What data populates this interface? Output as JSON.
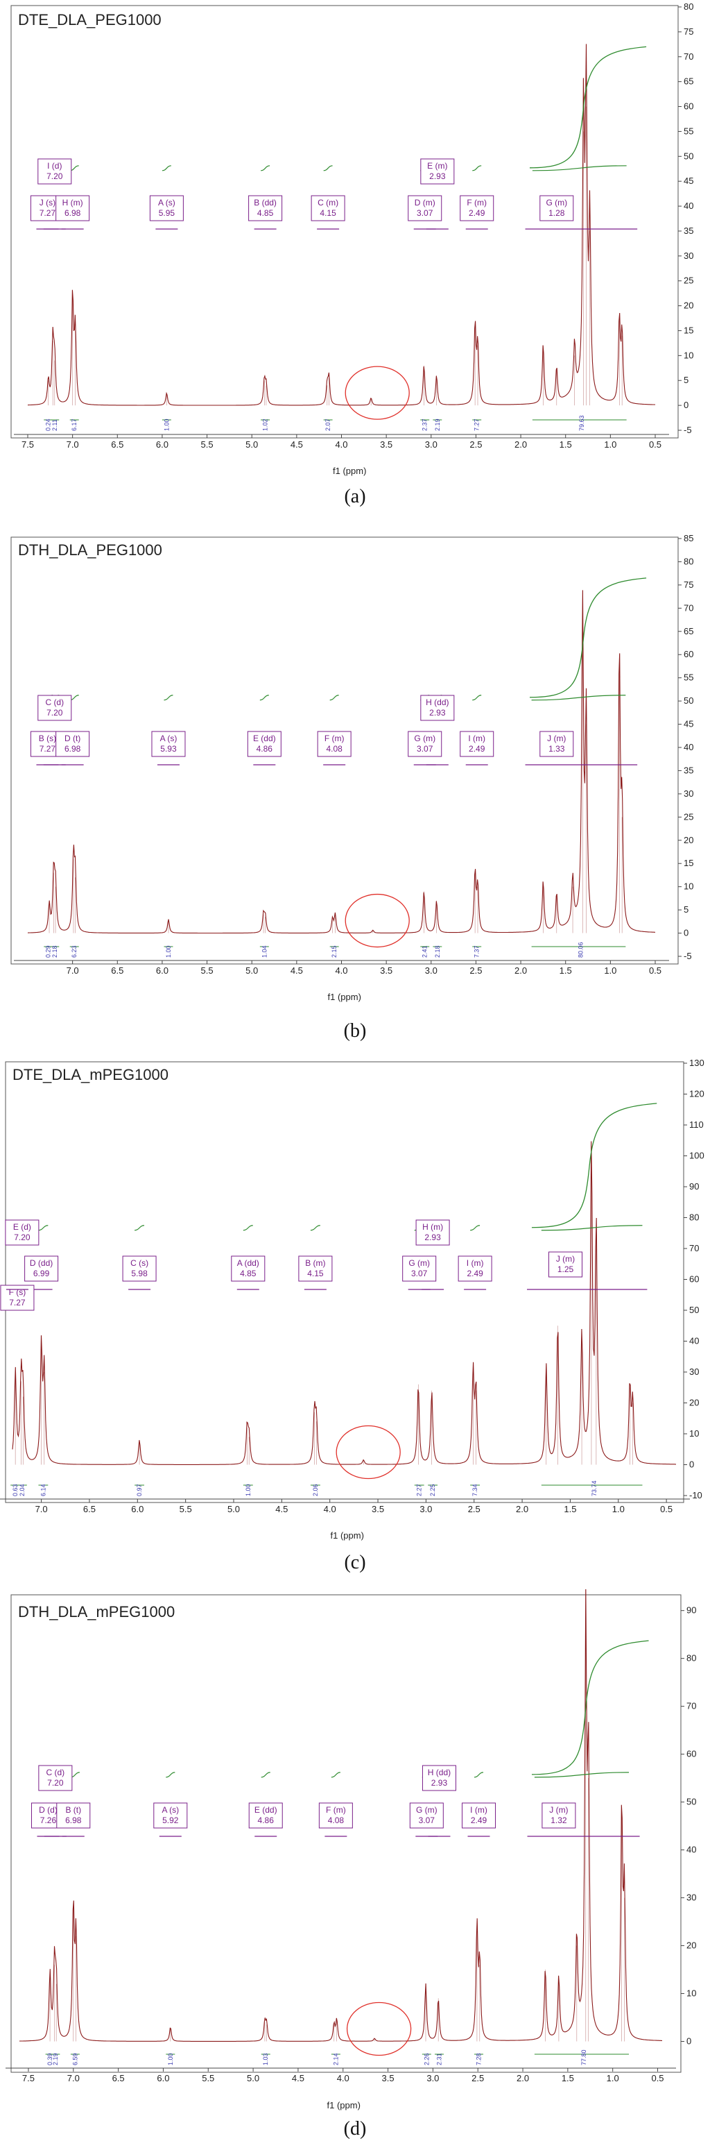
{
  "chart_data": [
    {
      "type": "line",
      "title": "DTE_DLA_PEG1000",
      "caption": "(a)",
      "xlabel": "f1 (ppm)",
      "x_reversed": true,
      "xlim": [
        7.5,
        0.5
      ],
      "ylim": [
        -5,
        80
      ],
      "xticks": [
        "7.5",
        "7.0",
        "6.5",
        "6.0",
        "5.5",
        "5.0",
        "4.5",
        "4.0",
        "3.5",
        "3.0",
        "2.5",
        "2.0",
        "1.5",
        "1.0",
        "0.5"
      ],
      "yticks": [
        "-5",
        "0",
        "5",
        "10",
        "15",
        "20",
        "25",
        "30",
        "35",
        "40",
        "45",
        "50",
        "55",
        "60",
        "65",
        "70",
        "75",
        "80"
      ],
      "peak_labels": [
        {
          "name": "J (s)",
          "shift": "7.27",
          "x": 7.28,
          "row": "low"
        },
        {
          "name": "I (d)",
          "shift": "7.20",
          "x": 7.2,
          "row": "high"
        },
        {
          "name": "H (m)",
          "shift": "6.98",
          "x": 7.0,
          "row": "low"
        },
        {
          "name": "A (s)",
          "shift": "5.95",
          "x": 5.95,
          "row": "low"
        },
        {
          "name": "B (dd)",
          "shift": "4.85",
          "x": 4.85,
          "row": "low"
        },
        {
          "name": "C (m)",
          "shift": "4.15",
          "x": 4.15,
          "row": "low"
        },
        {
          "name": "D (m)",
          "shift": "3.07",
          "x": 3.07,
          "row": "low"
        },
        {
          "name": "E (m)",
          "shift": "2.93",
          "x": 2.93,
          "row": "high"
        },
        {
          "name": "F (m)",
          "shift": "2.49",
          "x": 2.49,
          "row": "low"
        },
        {
          "name": "G (m)",
          "shift": "1.28",
          "x": 1.6,
          "row": "low"
        }
      ],
      "integrals": [
        {
          "x": 7.27,
          "value": "0.24"
        },
        {
          "x": 7.2,
          "value": "2.11"
        },
        {
          "x": 6.98,
          "value": "6.17"
        },
        {
          "x": 5.95,
          "value": "1.00"
        },
        {
          "x": 4.85,
          "value": "1.02"
        },
        {
          "x": 4.15,
          "value": "2.07"
        },
        {
          "x": 3.07,
          "value": "2.37"
        },
        {
          "x": 2.93,
          "value": "2.19"
        },
        {
          "x": 2.49,
          "value": "7.27"
        },
        {
          "x": 1.32,
          "value": "79.63"
        }
      ],
      "peaks": [
        {
          "x": 7.27,
          "h": 5
        },
        {
          "x": 7.22,
          "h": 13
        },
        {
          "x": 7.2,
          "h": 9
        },
        {
          "x": 7.0,
          "h": 22
        },
        {
          "x": 6.97,
          "h": 15
        },
        {
          "x": 5.95,
          "h": 2.5
        },
        {
          "x": 4.86,
          "h": 5
        },
        {
          "x": 4.84,
          "h": 4
        },
        {
          "x": 4.16,
          "h": 4
        },
        {
          "x": 4.14,
          "h": 5.5
        },
        {
          "x": 3.67,
          "h": 1.5
        },
        {
          "x": 3.08,
          "h": 8
        },
        {
          "x": 2.94,
          "h": 6
        },
        {
          "x": 2.51,
          "h": 16
        },
        {
          "x": 2.48,
          "h": 12
        },
        {
          "x": 1.75,
          "h": 12
        },
        {
          "x": 1.6,
          "h": 7
        },
        {
          "x": 1.4,
          "h": 10
        },
        {
          "x": 1.3,
          "h": 55
        },
        {
          "x": 1.27,
          "h": 60
        },
        {
          "x": 1.23,
          "h": 35
        },
        {
          "x": 0.9,
          "h": 17
        },
        {
          "x": 0.87,
          "h": 14
        }
      ]
    },
    {
      "type": "line",
      "title": "DTH_DLA_PEG1000",
      "caption": "(b)",
      "xlabel": "f1 (ppm)",
      "x_reversed": true,
      "xlim": [
        7.5,
        0.5
      ],
      "ylim": [
        -5,
        85
      ],
      "xticks": [
        "7.0",
        "6.5",
        "6.0",
        "5.5",
        "5.0",
        "4.5",
        "4.0",
        "3.5",
        "3.0",
        "2.5",
        "2.0",
        "1.5",
        "1.0",
        "0.5"
      ],
      "yticks": [
        "-5",
        "0",
        "5",
        "10",
        "15",
        "20",
        "25",
        "30",
        "35",
        "40",
        "45",
        "50",
        "55",
        "60",
        "65",
        "70",
        "75",
        "80",
        "85"
      ],
      "peak_labels": [
        {
          "name": "B (s)",
          "shift": "7.27",
          "x": 7.28,
          "row": "low"
        },
        {
          "name": "C (d)",
          "shift": "7.20",
          "x": 7.2,
          "row": "high"
        },
        {
          "name": "D (t)",
          "shift": "6.98",
          "x": 7.0,
          "row": "low"
        },
        {
          "name": "A (s)",
          "shift": "5.93",
          "x": 5.93,
          "row": "low"
        },
        {
          "name": "E (dd)",
          "shift": "4.86",
          "x": 4.86,
          "row": "low"
        },
        {
          "name": "F (m)",
          "shift": "4.08",
          "x": 4.08,
          "row": "low"
        },
        {
          "name": "G (m)",
          "shift": "3.07",
          "x": 3.07,
          "row": "low"
        },
        {
          "name": "H (dd)",
          "shift": "2.93",
          "x": 2.93,
          "row": "high"
        },
        {
          "name": "I (m)",
          "shift": "2.49",
          "x": 2.49,
          "row": "low"
        },
        {
          "name": "J (m)",
          "shift": "1.33",
          "x": 1.6,
          "row": "low"
        }
      ],
      "integrals": [
        {
          "x": 7.27,
          "value": "0.29"
        },
        {
          "x": 7.2,
          "value": "2.18"
        },
        {
          "x": 6.98,
          "value": "6.23"
        },
        {
          "x": 5.93,
          "value": "1.00"
        },
        {
          "x": 4.86,
          "value": "1.04"
        },
        {
          "x": 4.08,
          "value": "2.15"
        },
        {
          "x": 3.07,
          "value": "2.41"
        },
        {
          "x": 2.93,
          "value": "2.18"
        },
        {
          "x": 2.49,
          "value": "7.37"
        },
        {
          "x": 1.33,
          "value": "80.06"
        }
      ],
      "peaks": [
        {
          "x": 7.26,
          "h": 6
        },
        {
          "x": 7.21,
          "h": 13
        },
        {
          "x": 7.19,
          "h": 10
        },
        {
          "x": 6.99,
          "h": 16
        },
        {
          "x": 6.97,
          "h": 12
        },
        {
          "x": 5.93,
          "h": 3
        },
        {
          "x": 4.87,
          "h": 4
        },
        {
          "x": 4.85,
          "h": 3.5
        },
        {
          "x": 4.1,
          "h": 3
        },
        {
          "x": 4.07,
          "h": 4
        },
        {
          "x": 3.65,
          "h": 0.6
        },
        {
          "x": 3.08,
          "h": 9
        },
        {
          "x": 2.94,
          "h": 7
        },
        {
          "x": 2.51,
          "h": 13
        },
        {
          "x": 2.48,
          "h": 10
        },
        {
          "x": 1.75,
          "h": 11
        },
        {
          "x": 1.6,
          "h": 8
        },
        {
          "x": 1.42,
          "h": 10
        },
        {
          "x": 1.31,
          "h": 68
        },
        {
          "x": 1.27,
          "h": 45
        },
        {
          "x": 0.9,
          "h": 60
        },
        {
          "x": 0.87,
          "h": 25
        }
      ]
    },
    {
      "type": "line",
      "title": "DTE_DLA_mPEG1000",
      "caption": "(c)",
      "xlabel": "f1 (ppm)",
      "x_reversed": true,
      "xlim": [
        7.3,
        0.4
      ],
      "ylim": [
        -10,
        130
      ],
      "xticks": [
        "7.0",
        "6.5",
        "6.0",
        "5.5",
        "5.0",
        "4.5",
        "4.0",
        "3.5",
        "3.0",
        "2.5",
        "2.0",
        "1.5",
        "1.0",
        "0.5"
      ],
      "yticks": [
        "-10",
        "0",
        "10",
        "20",
        "30",
        "40",
        "50",
        "60",
        "70",
        "80",
        "90",
        "100",
        "110",
        "120",
        "130"
      ],
      "peak_labels": [
        {
          "name": "E (d)",
          "shift": "7.20",
          "x": 7.2,
          "row": "high"
        },
        {
          "name": "D (dd)",
          "shift": "6.99",
          "x": 7.0,
          "row": "low"
        },
        {
          "name": "F (s)",
          "shift": "7.27",
          "x": 7.25,
          "row": "lower"
        },
        {
          "name": "C (s)",
          "shift": "5.98",
          "x": 5.98,
          "row": "low"
        },
        {
          "name": "A (dd)",
          "shift": "4.85",
          "x": 4.85,
          "row": "low"
        },
        {
          "name": "B (m)",
          "shift": "4.15",
          "x": 4.15,
          "row": "low"
        },
        {
          "name": "G (m)",
          "shift": "3.07",
          "x": 3.07,
          "row": "low"
        },
        {
          "name": "H (m)",
          "shift": "2.93",
          "x": 2.93,
          "row": "high"
        },
        {
          "name": "I (m)",
          "shift": "2.49",
          "x": 2.49,
          "row": "low"
        },
        {
          "name": "J (m)",
          "shift": "1.25",
          "x": 1.55,
          "row": "high2"
        }
      ],
      "integrals": [
        {
          "x": 7.27,
          "value": "0.63"
        },
        {
          "x": 7.2,
          "value": "2.04"
        },
        {
          "x": 6.98,
          "value": "6.14"
        },
        {
          "x": 5.98,
          "value": "0.97"
        },
        {
          "x": 4.85,
          "value": "1.00"
        },
        {
          "x": 4.15,
          "value": "2.06"
        },
        {
          "x": 3.07,
          "value": "2.27"
        },
        {
          "x": 2.93,
          "value": "2.25"
        },
        {
          "x": 2.49,
          "value": "7.34"
        },
        {
          "x": 1.25,
          "value": "73.74"
        }
      ],
      "peaks": [
        {
          "x": 7.27,
          "h": 30
        },
        {
          "x": 7.21,
          "h": 27
        },
        {
          "x": 7.19,
          "h": 22
        },
        {
          "x": 7.0,
          "h": 38
        },
        {
          "x": 6.97,
          "h": 30
        },
        {
          "x": 5.98,
          "h": 8
        },
        {
          "x": 4.86,
          "h": 12
        },
        {
          "x": 4.84,
          "h": 9
        },
        {
          "x": 4.16,
          "h": 17
        },
        {
          "x": 4.14,
          "h": 14
        },
        {
          "x": 3.65,
          "h": 1.5
        },
        {
          "x": 3.08,
          "h": 26
        },
        {
          "x": 2.94,
          "h": 24
        },
        {
          "x": 2.51,
          "h": 30
        },
        {
          "x": 2.48,
          "h": 24
        },
        {
          "x": 1.75,
          "h": 32
        },
        {
          "x": 1.63,
          "h": 45
        },
        {
          "x": 1.38,
          "h": 40
        },
        {
          "x": 1.28,
          "h": 100
        },
        {
          "x": 1.23,
          "h": 75
        },
        {
          "x": 0.88,
          "h": 25
        },
        {
          "x": 0.85,
          "h": 20
        }
      ]
    },
    {
      "type": "line",
      "title": "DTH_DLA_mPEG1000",
      "caption": "(d)",
      "xlabel": "f1 (ppm)",
      "x_reversed": true,
      "xlim": [
        7.6,
        0.45
      ],
      "ylim": [
        -5,
        93
      ],
      "xticks": [
        "7.5",
        "7.0",
        "6.5",
        "6.0",
        "5.5",
        "5.0",
        "4.5",
        "4.0",
        "3.5",
        "3.0",
        "2.5",
        "2.0",
        "1.5",
        "1.0",
        "0.5"
      ],
      "yticks": [
        "0",
        "10",
        "20",
        "30",
        "40",
        "50",
        "60",
        "70",
        "80",
        "90"
      ],
      "peak_labels": [
        {
          "name": "D (d)",
          "shift": "7.26",
          "x": 7.28,
          "row": "low"
        },
        {
          "name": "C (d)",
          "shift": "7.20",
          "x": 7.2,
          "row": "high"
        },
        {
          "name": "B (t)",
          "shift": "6.98",
          "x": 7.0,
          "row": "low"
        },
        {
          "name": "A (s)",
          "shift": "5.92",
          "x": 5.92,
          "row": "low"
        },
        {
          "name": "E (dd)",
          "shift": "4.86",
          "x": 4.86,
          "row": "low"
        },
        {
          "name": "F (m)",
          "shift": "4.08",
          "x": 4.08,
          "row": "low"
        },
        {
          "name": "G (m)",
          "shift": "3.07",
          "x": 3.07,
          "row": "low"
        },
        {
          "name": "H (dd)",
          "shift": "2.93",
          "x": 2.93,
          "row": "high"
        },
        {
          "name": "I (m)",
          "shift": "2.49",
          "x": 2.49,
          "row": "low"
        },
        {
          "name": "J (m)",
          "shift": "1.32",
          "x": 1.6,
          "row": "low"
        }
      ],
      "integrals": [
        {
          "x": 7.26,
          "value": "0.39"
        },
        {
          "x": 7.2,
          "value": "2.19"
        },
        {
          "x": 6.98,
          "value": "6.59"
        },
        {
          "x": 5.92,
          "value": "1.00"
        },
        {
          "x": 4.86,
          "value": "1.03"
        },
        {
          "x": 4.08,
          "value": "2.14"
        },
        {
          "x": 3.07,
          "value": "2.26"
        },
        {
          "x": 2.93,
          "value": "2.31"
        },
        {
          "x": 2.49,
          "value": "7.28"
        },
        {
          "x": 1.32,
          "value": "77.80"
        }
      ],
      "peaks": [
        {
          "x": 7.26,
          "h": 14
        },
        {
          "x": 7.21,
          "h": 16
        },
        {
          "x": 7.19,
          "h": 12
        },
        {
          "x": 7.0,
          "h": 28
        },
        {
          "x": 6.97,
          "h": 22
        },
        {
          "x": 5.92,
          "h": 3
        },
        {
          "x": 4.87,
          "h": 4
        },
        {
          "x": 4.85,
          "h": 3.5
        },
        {
          "x": 4.1,
          "h": 3.5
        },
        {
          "x": 4.07,
          "h": 4.5
        },
        {
          "x": 3.65,
          "h": 0.6
        },
        {
          "x": 3.08,
          "h": 12
        },
        {
          "x": 2.94,
          "h": 9
        },
        {
          "x": 2.51,
          "h": 24
        },
        {
          "x": 2.48,
          "h": 16
        },
        {
          "x": 1.75,
          "h": 15
        },
        {
          "x": 1.6,
          "h": 13
        },
        {
          "x": 1.4,
          "h": 20
        },
        {
          "x": 1.3,
          "h": 85
        },
        {
          "x": 1.27,
          "h": 55
        },
        {
          "x": 0.9,
          "h": 48
        },
        {
          "x": 0.87,
          "h": 30
        }
      ]
    }
  ]
}
